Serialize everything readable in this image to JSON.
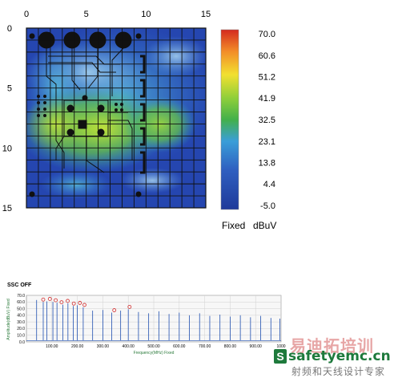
{
  "chart_data": [
    {
      "type": "heatmap",
      "title": "",
      "xlim": [
        0,
        15
      ],
      "ylim": [
        0,
        15
      ],
      "x_ticks": [
        "0",
        "5",
        "10",
        "15"
      ],
      "y_ticks": [
        "0",
        "5",
        "10",
        "15"
      ],
      "grid": true,
      "colorbar": {
        "ticks": [
          "70.0",
          "60.6",
          "51.2",
          "41.9",
          "32.5",
          "23.1",
          "13.8",
          "4.4",
          "-5.0"
        ],
        "min": -5.0,
        "max": 70.0,
        "mode_label": "Fixed",
        "unit_label": "dBuV",
        "colors": [
          "#d42a1e",
          "#f28c28",
          "#f2e030",
          "#8fcf3a",
          "#43b04a",
          "#3a9ed8",
          "#2f5fc0",
          "#1f3a9a"
        ]
      }
    },
    {
      "type": "line",
      "title": "SSC OFF",
      "xlabel": "Frequency(MHz) Fixed",
      "ylabel": "Amplitude(dBuV) Fixed",
      "xlim": [
        0,
        1000
      ],
      "ylim": [
        0,
        70
      ],
      "x_ticks": [
        "100.00",
        "200.00",
        "300.00",
        "400.00",
        "500.00",
        "600.00",
        "700.00",
        "800.00",
        "900.00",
        "1000"
      ],
      "y_ticks": [
        "70.0",
        "60.0",
        "50.0",
        "40.0",
        "30.0",
        "20.0",
        "10.0",
        "0.0"
      ],
      "grid": true,
      "series": [
        {
          "color": "#1f4fb0",
          "harmonics_mhz": [
            40,
            66,
            80,
            104,
            120,
            143,
            163,
            184,
            200,
            223,
            260,
            300,
            335,
            370,
            400,
            440,
            480,
            520,
            560,
            600,
            640,
            680,
            720,
            760,
            800,
            840,
            880,
            920,
            960,
            995
          ],
          "peak_dbuv": [
            63,
            60,
            61,
            60,
            59,
            56,
            58,
            54,
            55,
            52,
            47,
            48,
            44,
            47,
            49,
            45,
            43,
            46,
            42,
            44,
            40,
            43,
            39,
            41,
            38,
            40,
            37,
            39,
            36,
            35
          ]
        }
      ],
      "markers": {
        "color": "#d22b2b",
        "x": [
          66,
          92,
          115,
          138,
          162,
          186,
          210,
          228,
          345,
          405
        ]
      }
    }
  ],
  "watermark": {
    "brand": "safetyemc.cn",
    "brand_cn": "易迪拓培训",
    "tagline": "射频和天线设计专家",
    "badge": "S"
  }
}
